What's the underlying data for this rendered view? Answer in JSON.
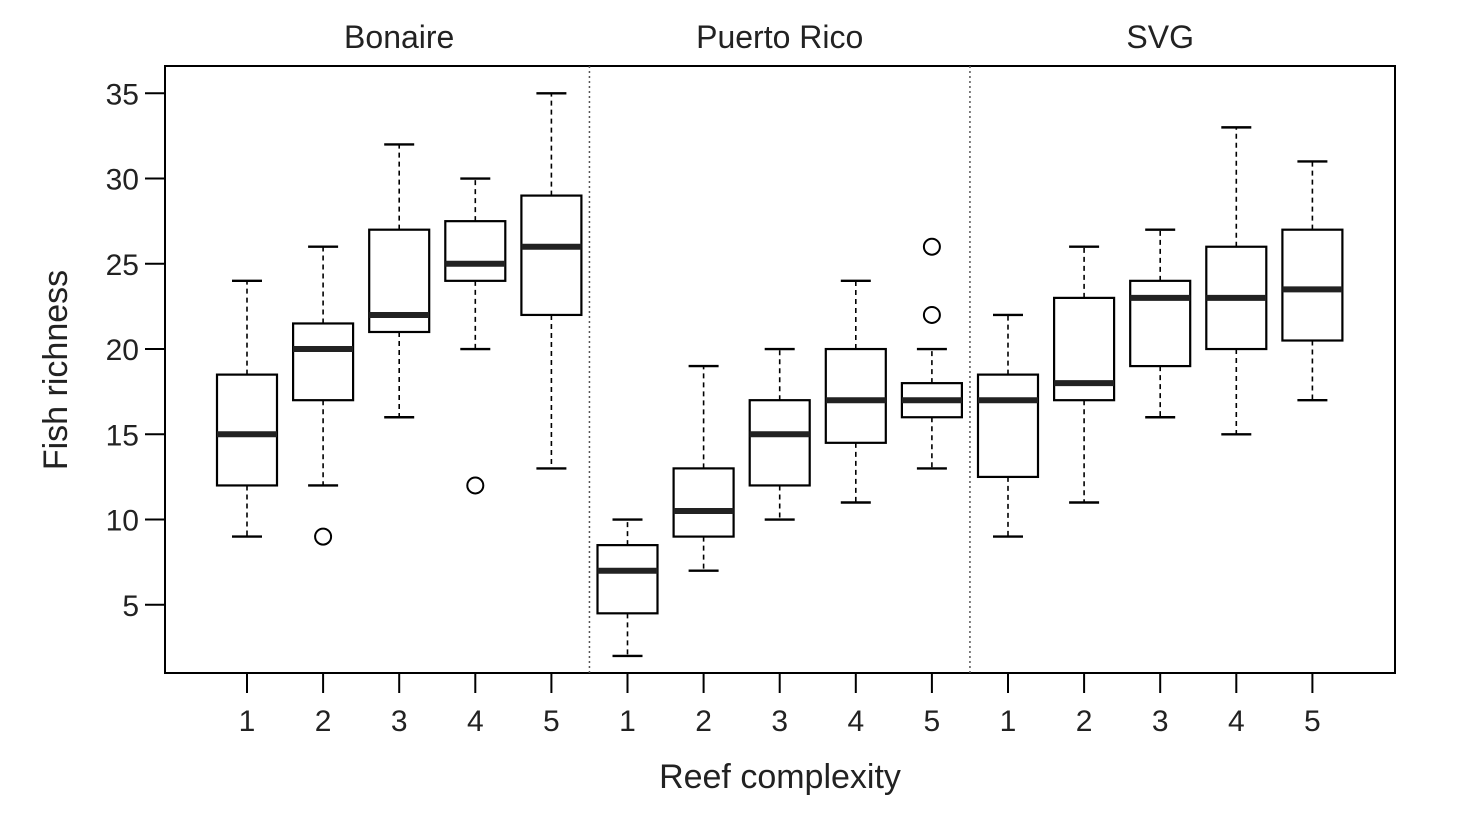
{
  "chart_data": {
    "type": "boxplot",
    "xlabel": "Reef complexity",
    "ylabel": "Fish richness",
    "ylim": [
      1,
      36.6
    ],
    "yticks": [
      5,
      10,
      15,
      20,
      25,
      30,
      35
    ],
    "grid": false,
    "panels": [
      {
        "name": "Bonaire",
        "categories": [
          "1",
          "2",
          "3",
          "4",
          "5"
        ],
        "boxes": [
          {
            "category": "1",
            "whisker_low": 9,
            "q1": 12,
            "median": 15,
            "q3": 18.5,
            "whisker_high": 24,
            "outliers": []
          },
          {
            "category": "2",
            "whisker_low": 12,
            "q1": 17,
            "median": 20,
            "q3": 21.5,
            "whisker_high": 26,
            "outliers": [
              9
            ]
          },
          {
            "category": "3",
            "whisker_low": 16,
            "q1": 21,
            "median": 22,
            "q3": 27,
            "whisker_high": 32,
            "outliers": []
          },
          {
            "category": "4",
            "whisker_low": 20,
            "q1": 24,
            "median": 25,
            "q3": 27.5,
            "whisker_high": 30,
            "outliers": [
              12
            ]
          },
          {
            "category": "5",
            "whisker_low": 13,
            "q1": 22,
            "median": 26,
            "q3": 29,
            "whisker_high": 35,
            "outliers": []
          }
        ]
      },
      {
        "name": "Puerto Rico",
        "categories": [
          "1",
          "2",
          "3",
          "4",
          "5"
        ],
        "boxes": [
          {
            "category": "1",
            "whisker_low": 2,
            "q1": 4.5,
            "median": 7,
            "q3": 8.5,
            "whisker_high": 10,
            "outliers": []
          },
          {
            "category": "2",
            "whisker_low": 7,
            "q1": 9,
            "median": 10.5,
            "q3": 13,
            "whisker_high": 19,
            "outliers": []
          },
          {
            "category": "3",
            "whisker_low": 10,
            "q1": 12,
            "median": 15,
            "q3": 17,
            "whisker_high": 20,
            "outliers": []
          },
          {
            "category": "4",
            "whisker_low": 11,
            "q1": 14.5,
            "median": 17,
            "q3": 20,
            "whisker_high": 24,
            "outliers": []
          },
          {
            "category": "5",
            "whisker_low": 13,
            "q1": 16,
            "median": 17,
            "q3": 18,
            "whisker_high": 20,
            "outliers": [
              22,
              26
            ]
          }
        ]
      },
      {
        "name": "SVG",
        "categories": [
          "1",
          "2",
          "3",
          "4",
          "5"
        ],
        "boxes": [
          {
            "category": "1",
            "whisker_low": 9,
            "q1": 12.5,
            "median": 17,
            "q3": 18.5,
            "whisker_high": 22,
            "outliers": []
          },
          {
            "category": "2",
            "whisker_low": 11,
            "q1": 17,
            "median": 18,
            "q3": 23,
            "whisker_high": 26,
            "outliers": []
          },
          {
            "category": "3",
            "whisker_low": 16,
            "q1": 19,
            "median": 23,
            "q3": 24,
            "whisker_high": 27,
            "outliers": []
          },
          {
            "category": "4",
            "whisker_low": 15,
            "q1": 20,
            "median": 23,
            "q3": 26,
            "whisker_high": 33,
            "outliers": []
          },
          {
            "category": "5",
            "whisker_low": 17,
            "q1": 20.5,
            "median": 23.5,
            "q3": 27,
            "whisker_high": 31,
            "outliers": []
          }
        ]
      }
    ]
  }
}
